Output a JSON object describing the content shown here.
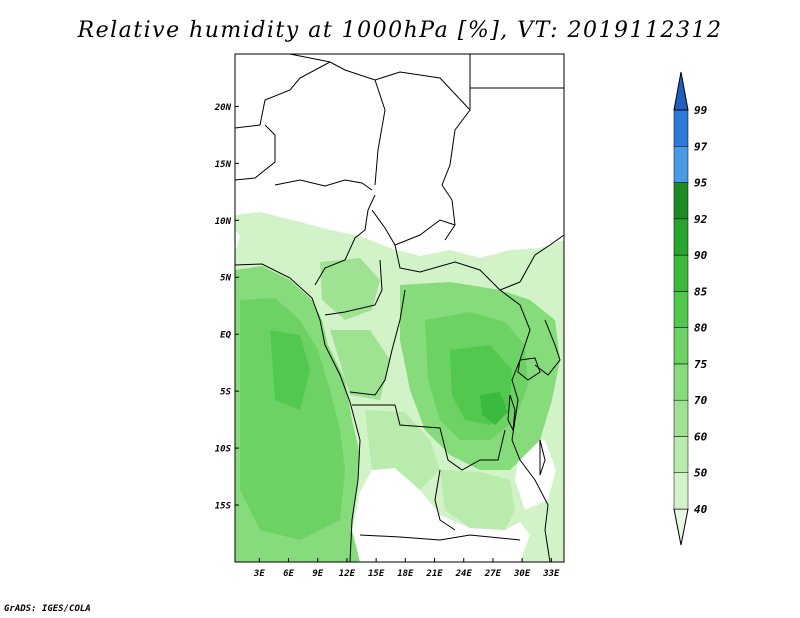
{
  "title": "Relative humidity at 1000hPa [%], VT: 2019112312",
  "credit": "GrADS: IGES/COLA",
  "map": {
    "lat_ticks": [
      {
        "value": 20,
        "label": "20N"
      },
      {
        "value": 15,
        "label": "15N"
      },
      {
        "value": 10,
        "label": "10N"
      },
      {
        "value": 5,
        "label": "5N"
      },
      {
        "value": 0,
        "label": "EQ"
      },
      {
        "value": -5,
        "label": "5S"
      },
      {
        "value": -10,
        "label": "10S"
      },
      {
        "value": -15,
        "label": "15S"
      }
    ],
    "lon_ticks": [
      {
        "value": 3,
        "label": "3E"
      },
      {
        "value": 6,
        "label": "6E"
      },
      {
        "value": 9,
        "label": "9E"
      },
      {
        "value": 12,
        "label": "12E"
      },
      {
        "value": 15,
        "label": "15E"
      },
      {
        "value": 18,
        "label": "18E"
      },
      {
        "value": 21,
        "label": "21E"
      },
      {
        "value": 24,
        "label": "24E"
      },
      {
        "value": 27,
        "label": "27E"
      },
      {
        "value": 30,
        "label": "30E"
      },
      {
        "value": 33,
        "label": "33E"
      }
    ]
  },
  "colorbar": {
    "levels": [
      "40",
      "50",
      "60",
      "70",
      "75",
      "80",
      "85",
      "90",
      "92",
      "95",
      "97",
      "99"
    ],
    "colors": [
      "#e8f8e2",
      "#d2f2c8",
      "#b8ebac",
      "#9fe392",
      "#86db7b",
      "#6cd264",
      "#53c84f",
      "#3cba3d",
      "#27a52c",
      "#1a8c20",
      "#4a9ae8",
      "#2f7ad6",
      "#1f5fbe"
    ]
  },
  "colors": {
    "frame": "#000000",
    "border": "#000000",
    "blank": "#ffffff"
  }
}
